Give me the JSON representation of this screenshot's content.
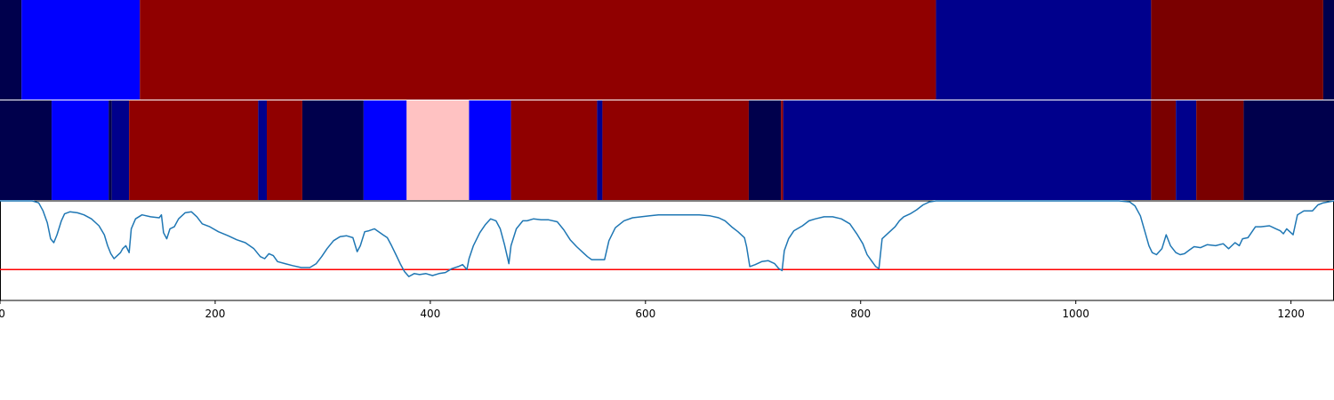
{
  "chart_data": {
    "type": "heatmap",
    "title": "",
    "xlabel": "",
    "ylabel": "",
    "xlim": [
      0,
      1240
    ],
    "xticks": [
      0,
      200,
      400,
      600,
      800,
      1000,
      1200
    ],
    "grid": false,
    "colors": {
      "navy_dark": "#00004c",
      "navy": "#00008c",
      "blue": "#0000ff",
      "pink": "#ffc2c2",
      "red": "#900000",
      "dark_red": "#7a0000",
      "line": "#1f77b4",
      "threshold": "#ff0000"
    },
    "rows": [
      {
        "segments": [
          {
            "start": 0,
            "end": 20,
            "color": "#00004c"
          },
          {
            "start": 20,
            "end": 130,
            "color": "#0000ff"
          },
          {
            "start": 130,
            "end": 870,
            "color": "#900000"
          },
          {
            "start": 870,
            "end": 1070,
            "color": "#00008c"
          },
          {
            "start": 1070,
            "end": 1230,
            "color": "#7a0000"
          },
          {
            "start": 1230,
            "end": 1240,
            "color": "#00004c"
          }
        ]
      },
      {
        "segments": [
          {
            "start": 0,
            "end": 48,
            "color": "#00004c"
          },
          {
            "start": 48,
            "end": 101,
            "color": "#0000ff"
          },
          {
            "start": 101,
            "end": 104,
            "color": "#00004c"
          },
          {
            "start": 104,
            "end": 120,
            "color": "#00008c"
          },
          {
            "start": 120,
            "end": 240,
            "color": "#900000"
          },
          {
            "start": 240,
            "end": 248,
            "color": "#00008c"
          },
          {
            "start": 248,
            "end": 281,
            "color": "#900000"
          },
          {
            "start": 281,
            "end": 338,
            "color": "#00004c"
          },
          {
            "start": 338,
            "end": 378,
            "color": "#0000ff"
          },
          {
            "start": 378,
            "end": 436,
            "color": "#ffc2c2"
          },
          {
            "start": 436,
            "end": 475,
            "color": "#0000ff"
          },
          {
            "start": 475,
            "end": 555,
            "color": "#900000"
          },
          {
            "start": 555,
            "end": 560,
            "color": "#00008c"
          },
          {
            "start": 560,
            "end": 696,
            "color": "#900000"
          },
          {
            "start": 696,
            "end": 726,
            "color": "#00004c"
          },
          {
            "start": 726,
            "end": 728,
            "color": "#900000"
          },
          {
            "start": 728,
            "end": 1070,
            "color": "#00008c"
          },
          {
            "start": 1070,
            "end": 1093,
            "color": "#7a0000"
          },
          {
            "start": 1093,
            "end": 1112,
            "color": "#00008c"
          },
          {
            "start": 1112,
            "end": 1156,
            "color": "#7a0000"
          },
          {
            "start": 1156,
            "end": 1240,
            "color": "#00004c"
          }
        ]
      }
    ],
    "line": {
      "ylim": [
        0,
        1
      ],
      "threshold": 0.31,
      "points": [
        [
          0,
          1.0
        ],
        [
          30,
          1.0
        ],
        [
          36,
          0.98
        ],
        [
          40,
          0.9
        ],
        [
          44,
          0.78
        ],
        [
          47,
          0.62
        ],
        [
          50,
          0.58
        ],
        [
          53,
          0.66
        ],
        [
          57,
          0.8
        ],
        [
          60,
          0.87
        ],
        [
          65,
          0.89
        ],
        [
          72,
          0.88
        ],
        [
          78,
          0.86
        ],
        [
          85,
          0.82
        ],
        [
          92,
          0.75
        ],
        [
          97,
          0.66
        ],
        [
          100,
          0.55
        ],
        [
          103,
          0.47
        ],
        [
          106,
          0.42
        ],
        [
          109,
          0.45
        ],
        [
          112,
          0.48
        ],
        [
          114,
          0.52
        ],
        [
          117,
          0.55
        ],
        [
          120,
          0.48
        ],
        [
          122,
          0.72
        ],
        [
          126,
          0.82
        ],
        [
          132,
          0.86
        ],
        [
          140,
          0.84
        ],
        [
          148,
          0.83
        ],
        [
          150,
          0.86
        ],
        [
          152,
          0.68
        ],
        [
          155,
          0.62
        ],
        [
          158,
          0.72
        ],
        [
          162,
          0.74
        ],
        [
          166,
          0.82
        ],
        [
          172,
          0.88
        ],
        [
          178,
          0.89
        ],
        [
          183,
          0.84
        ],
        [
          188,
          0.77
        ],
        [
          195,
          0.74
        ],
        [
          203,
          0.69
        ],
        [
          212,
          0.65
        ],
        [
          220,
          0.61
        ],
        [
          228,
          0.58
        ],
        [
          236,
          0.52
        ],
        [
          242,
          0.44
        ],
        [
          246,
          0.42
        ],
        [
          250,
          0.47
        ],
        [
          254,
          0.45
        ],
        [
          258,
          0.39
        ],
        [
          265,
          0.37
        ],
        [
          272,
          0.35
        ],
        [
          280,
          0.33
        ],
        [
          288,
          0.33
        ],
        [
          294,
          0.37
        ],
        [
          299,
          0.44
        ],
        [
          304,
          0.52
        ],
        [
          310,
          0.6
        ],
        [
          316,
          0.64
        ],
        [
          322,
          0.65
        ],
        [
          328,
          0.63
        ],
        [
          332,
          0.49
        ],
        [
          335,
          0.55
        ],
        [
          339,
          0.69
        ],
        [
          343,
          0.7
        ],
        [
          348,
          0.72
        ],
        [
          352,
          0.69
        ],
        [
          356,
          0.66
        ],
        [
          360,
          0.63
        ],
        [
          364,
          0.55
        ],
        [
          368,
          0.46
        ],
        [
          372,
          0.37
        ],
        [
          376,
          0.29
        ],
        [
          380,
          0.24
        ],
        [
          385,
          0.27
        ],
        [
          390,
          0.26
        ],
        [
          396,
          0.27
        ],
        [
          402,
          0.25
        ],
        [
          408,
          0.27
        ],
        [
          414,
          0.28
        ],
        [
          420,
          0.32
        ],
        [
          426,
          0.34
        ],
        [
          430,
          0.36
        ],
        [
          434,
          0.31
        ],
        [
          436,
          0.42
        ],
        [
          440,
          0.55
        ],
        [
          446,
          0.68
        ],
        [
          451,
          0.76
        ],
        [
          456,
          0.82
        ],
        [
          461,
          0.8
        ],
        [
          465,
          0.72
        ],
        [
          469,
          0.56
        ],
        [
          473,
          0.37
        ],
        [
          475,
          0.55
        ],
        [
          480,
          0.72
        ],
        [
          486,
          0.8
        ],
        [
          490,
          0.8
        ],
        [
          496,
          0.82
        ],
        [
          503,
          0.81
        ],
        [
          510,
          0.81
        ],
        [
          518,
          0.79
        ],
        [
          524,
          0.71
        ],
        [
          530,
          0.61
        ],
        [
          536,
          0.54
        ],
        [
          542,
          0.48
        ],
        [
          546,
          0.44
        ],
        [
          550,
          0.41
        ],
        [
          556,
          0.41
        ],
        [
          562,
          0.41
        ],
        [
          566,
          0.6
        ],
        [
          572,
          0.73
        ],
        [
          580,
          0.8
        ],
        [
          588,
          0.83
        ],
        [
          596,
          0.84
        ],
        [
          604,
          0.85
        ],
        [
          612,
          0.86
        ],
        [
          620,
          0.86
        ],
        [
          630,
          0.86
        ],
        [
          640,
          0.86
        ],
        [
          650,
          0.86
        ],
        [
          660,
          0.85
        ],
        [
          668,
          0.83
        ],
        [
          674,
          0.8
        ],
        [
          680,
          0.74
        ],
        [
          686,
          0.69
        ],
        [
          692,
          0.63
        ],
        [
          694,
          0.54
        ],
        [
          697,
          0.34
        ],
        [
          702,
          0.36
        ],
        [
          708,
          0.39
        ],
        [
          714,
          0.4
        ],
        [
          720,
          0.37
        ],
        [
          724,
          0.32
        ],
        [
          727,
          0.3
        ],
        [
          729,
          0.5
        ],
        [
          733,
          0.62
        ],
        [
          738,
          0.7
        ],
        [
          746,
          0.75
        ],
        [
          752,
          0.8
        ],
        [
          758,
          0.82
        ],
        [
          766,
          0.84
        ],
        [
          774,
          0.84
        ],
        [
          782,
          0.82
        ],
        [
          790,
          0.77
        ],
        [
          797,
          0.66
        ],
        [
          802,
          0.57
        ],
        [
          806,
          0.46
        ],
        [
          810,
          0.4
        ],
        [
          814,
          0.34
        ],
        [
          817,
          0.32
        ],
        [
          820,
          0.62
        ],
        [
          826,
          0.68
        ],
        [
          832,
          0.74
        ],
        [
          836,
          0.8
        ],
        [
          840,
          0.84
        ],
        [
          846,
          0.87
        ],
        [
          852,
          0.91
        ],
        [
          858,
          0.96
        ],
        [
          864,
          0.99
        ],
        [
          870,
          1.0
        ],
        [
          880,
          1.0
        ],
        [
          1040,
          1.0
        ],
        [
          1050,
          0.99
        ],
        [
          1055,
          0.95
        ],
        [
          1060,
          0.85
        ],
        [
          1064,
          0.7
        ],
        [
          1068,
          0.55
        ],
        [
          1071,
          0.48
        ],
        [
          1075,
          0.46
        ],
        [
          1080,
          0.52
        ],
        [
          1084,
          0.66
        ],
        [
          1088,
          0.55
        ],
        [
          1093,
          0.48
        ],
        [
          1097,
          0.46
        ],
        [
          1101,
          0.47
        ],
        [
          1106,
          0.51
        ],
        [
          1110,
          0.54
        ],
        [
          1116,
          0.53
        ],
        [
          1122,
          0.56
        ],
        [
          1130,
          0.55
        ],
        [
          1137,
          0.57
        ],
        [
          1142,
          0.52
        ],
        [
          1148,
          0.58
        ],
        [
          1152,
          0.55
        ],
        [
          1155,
          0.62
        ],
        [
          1160,
          0.63
        ],
        [
          1167,
          0.74
        ],
        [
          1172,
          0.74
        ],
        [
          1180,
          0.75
        ],
        [
          1186,
          0.72
        ],
        [
          1190,
          0.7
        ],
        [
          1193,
          0.67
        ],
        [
          1196,
          0.72
        ],
        [
          1202,
          0.66
        ],
        [
          1206,
          0.86
        ],
        [
          1212,
          0.9
        ],
        [
          1220,
          0.9
        ],
        [
          1225,
          0.96
        ],
        [
          1230,
          0.98
        ],
        [
          1240,
          1.0
        ]
      ]
    }
  }
}
